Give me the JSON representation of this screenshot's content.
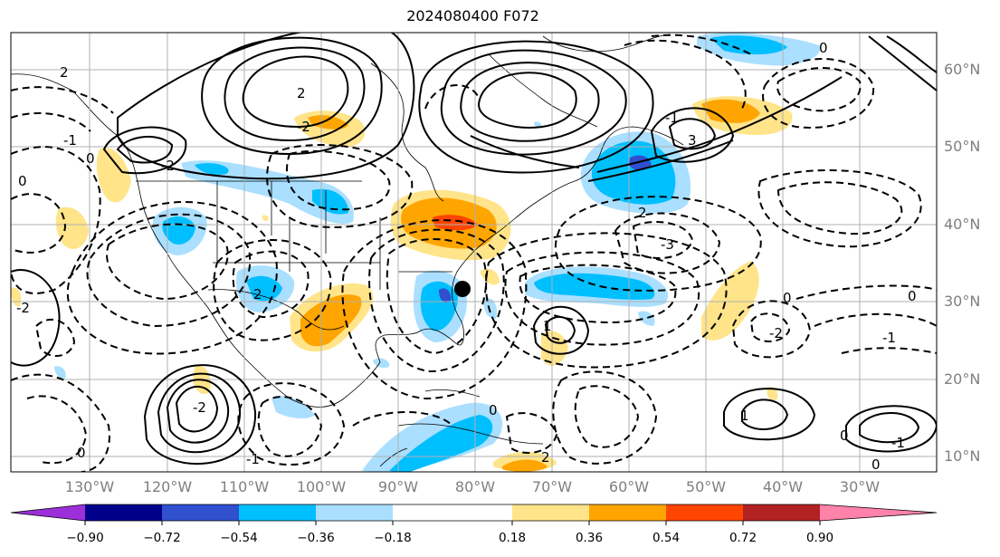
{
  "title": "2024080400 F072",
  "map": {
    "lat_ticks": [
      "60°N",
      "50°N",
      "40°N",
      "30°N",
      "20°N",
      "10°N"
    ],
    "lon_ticks": [
      "130°W",
      "120°W",
      "110°W",
      "100°W",
      "90°W",
      "80°W",
      "70°W",
      "60°W",
      "50°W",
      "40°W",
      "30°W"
    ],
    "contour_labels": [
      "2",
      "2",
      "-2",
      "-2",
      "2",
      "-1",
      "0",
      "0",
      "-2",
      "-3",
      "-1",
      "3",
      "2",
      "0",
      "0",
      "-1",
      "-2",
      "0",
      "1",
      "1",
      "-2",
      "-1",
      "0",
      "2",
      "-1",
      "0",
      "0",
      "0"
    ],
    "marker": {
      "type": "black-dot",
      "lon": -80,
      "lat": 32
    }
  },
  "colorbar": {
    "ticks": [
      "−0.90",
      "−0.72",
      "−0.54",
      "−0.36",
      "−0.18",
      "0.18",
      "0.36",
      "0.54",
      "0.72",
      "0.90"
    ],
    "colors": [
      "#9b30d9",
      "#00008b",
      "#3050d0",
      "#00bfff",
      "#aadfff",
      "#ffffff",
      "#ffe48a",
      "#ffa500",
      "#ff4500",
      "#b22222",
      "#ff82ab"
    ]
  }
}
